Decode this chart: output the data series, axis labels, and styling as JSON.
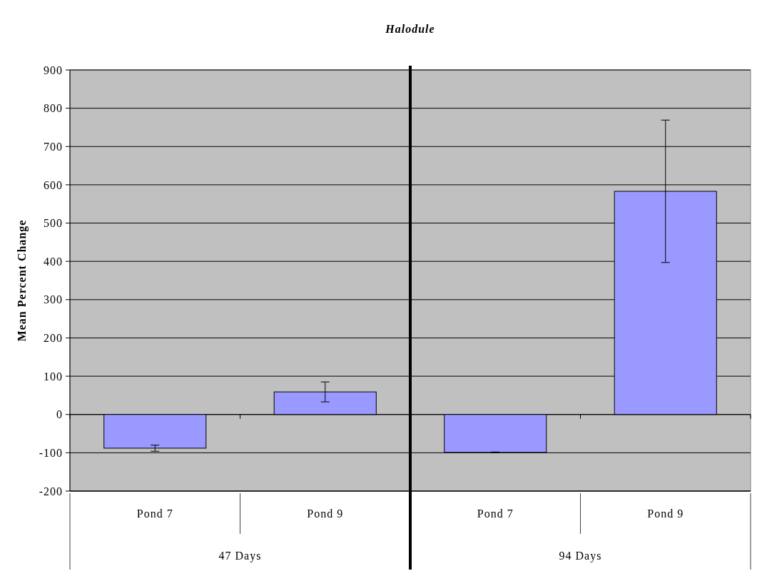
{
  "chart_data": {
    "type": "bar",
    "title": "Halodule",
    "ylabel": "Mean Percent Change",
    "categories": [
      "Pond 7",
      "Pond 9",
      "Pond 7",
      "Pond 9"
    ],
    "values": [
      -88,
      59,
      -99,
      583
    ],
    "errors": [
      8,
      26,
      1,
      186
    ],
    "color": "#9999ff",
    "ylim": [
      -200,
      900
    ],
    "yticks": [
      -200,
      -100,
      0,
      100,
      200,
      300,
      400,
      500,
      600,
      700,
      800,
      900
    ],
    "grid": "y",
    "annotations": [
      "47 Days",
      "94 Days"
    ]
  }
}
